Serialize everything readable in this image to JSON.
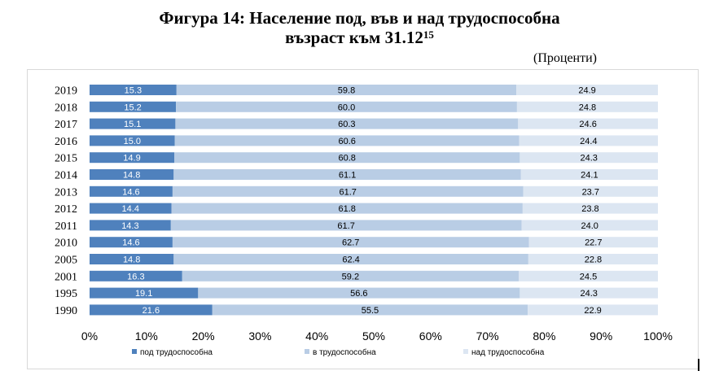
{
  "title_line1": "Фигура 14: Население под, във и над трудоспособна",
  "title_line2": "възраст към 31.12",
  "title_sup": "15",
  "unit_label": "(Проценти)",
  "colors": {
    "under": "#4f81bd",
    "working": "#b9cde5",
    "over": "#dce6f2"
  },
  "chart_data": {
    "type": "bar",
    "orientation": "horizontal",
    "stacked": "percent",
    "categories": [
      "2019",
      "2018",
      "2017",
      "2016",
      "2015",
      "2014",
      "2013",
      "2012",
      "2011",
      "2010",
      "2005",
      "2001",
      "1995",
      "1990"
    ],
    "series": [
      {
        "name": "под трудоспособна",
        "values": [
          15.3,
          15.2,
          15.1,
          15.0,
          14.9,
          14.8,
          14.6,
          14.4,
          14.3,
          14.6,
          14.8,
          16.3,
          19.1,
          21.6
        ]
      },
      {
        "name": "в трудоспособна",
        "values": [
          59.8,
          60.0,
          60.3,
          60.6,
          60.8,
          61.1,
          61.7,
          61.8,
          61.7,
          62.7,
          62.4,
          59.2,
          56.6,
          55.5
        ]
      },
      {
        "name": "над трудоспособна",
        "values": [
          24.9,
          24.8,
          24.6,
          24.4,
          24.3,
          24.1,
          23.7,
          23.8,
          24.0,
          22.7,
          22.8,
          24.5,
          24.3,
          22.9
        ]
      }
    ],
    "xticks": [
      "0%",
      "10%",
      "20%",
      "30%",
      "40%",
      "50%",
      "60%",
      "70%",
      "80%",
      "90%",
      "100%"
    ],
    "xlim": [
      0,
      100
    ],
    "legend_position": "bottom",
    "grid": false
  }
}
